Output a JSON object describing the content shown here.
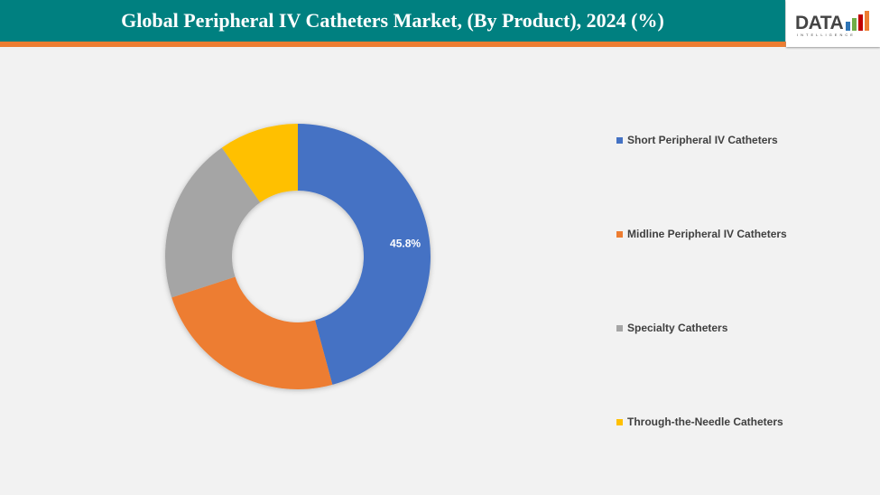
{
  "header": {
    "title": "Global Peripheral IV Catheters Market, (By Product), 2024 (%)"
  },
  "logo": {
    "text": "DATA",
    "subtext": "INTELLIGENCE"
  },
  "chart_data": {
    "type": "pie",
    "donut": true,
    "title": "Global Peripheral IV Catheters Market, (By Product), 2024 (%)",
    "categories": [
      "Short Peripheral IV Catheters",
      "Midline Peripheral IV Catheters",
      "Specialty Catheters",
      "Through-the-Needle Catheters"
    ],
    "values": [
      45.8,
      24.2,
      20.3,
      9.7
    ],
    "colors": [
      "#4472c4",
      "#ed7d31",
      "#a5a5a5",
      "#ffc000"
    ],
    "data_labels": [
      "45.8%",
      "",
      "",
      ""
    ],
    "legend_position": "right"
  }
}
